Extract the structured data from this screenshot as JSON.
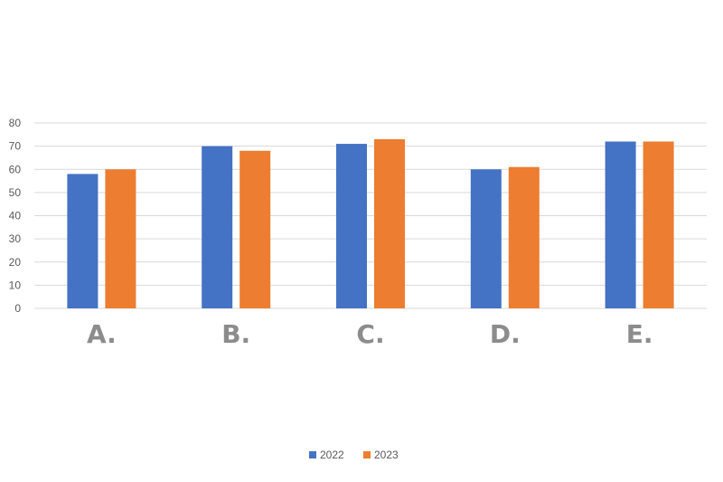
{
  "chart_data": {
    "type": "bar",
    "categories": [
      "A.",
      "B.",
      "C.",
      "D.",
      "E."
    ],
    "series": [
      {
        "name": "2022",
        "values": [
          58,
          70,
          71,
          60,
          72
        ],
        "color": "#4472C4"
      },
      {
        "name": "2023",
        "values": [
          60,
          68,
          73,
          61,
          72
        ],
        "color": "#ED7D31"
      }
    ],
    "yticks": [
      0,
      10,
      20,
      30,
      40,
      50,
      60,
      70,
      80
    ],
    "ylim": [
      0,
      80
    ],
    "grid": true,
    "legend_position": "bottom"
  }
}
